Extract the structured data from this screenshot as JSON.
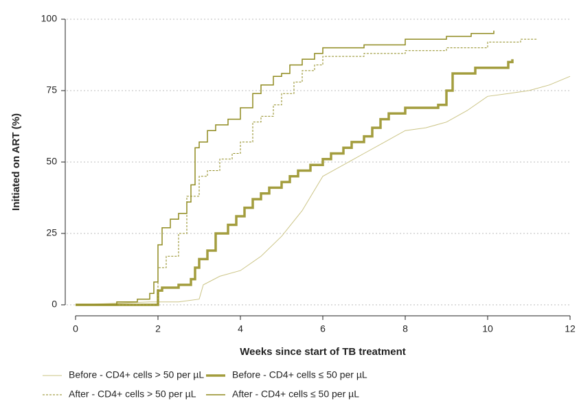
{
  "chart_data": {
    "type": "line",
    "xlabel": "Weeks since start of TB treatment",
    "ylabel": "Initiated on ART (%)",
    "xlim": [
      0,
      12
    ],
    "xticks": [
      0,
      2,
      4,
      6,
      8,
      10,
      12
    ],
    "ylim": [
      0,
      100
    ],
    "yticks": [
      0,
      25,
      50,
      75,
      100
    ],
    "grid": true,
    "legend": "bottom",
    "series": [
      {
        "name": "Before - CD4+ cells > 50 per µL",
        "color": "#cbc485",
        "width": 1,
        "dash": false,
        "step": false,
        "x": [
          0,
          1.8,
          2.5,
          3,
          3.1,
          3.5,
          4,
          4.5,
          5,
          5.5,
          6,
          6.5,
          7,
          7.5,
          8,
          8.5,
          9,
          9.5,
          10,
          10.5,
          11,
          11.5,
          12
        ],
        "values": [
          0,
          1,
          1,
          2,
          7,
          10,
          12,
          17,
          24,
          33,
          45,
          49,
          53,
          57,
          61,
          62,
          64,
          68,
          73,
          74,
          75,
          77,
          80
        ]
      },
      {
        "name": "Before - CD4+ cells ≤ 50 per µL",
        "color": "#a39d3e",
        "width": 3.5,
        "dash": false,
        "step": true,
        "x": [
          0,
          2,
          2.1,
          2.5,
          2.8,
          2.9,
          3,
          3.2,
          3.4,
          3.7,
          3.9,
          4.1,
          4.3,
          4.5,
          4.7,
          5,
          5.2,
          5.4,
          5.7,
          6,
          6.2,
          6.5,
          6.7,
          7,
          7.2,
          7.4,
          7.6,
          8,
          8.8,
          9,
          9.15,
          9.7,
          10.5,
          10.6
        ],
        "values": [
          0,
          5,
          6,
          7,
          9,
          13,
          16,
          19,
          25,
          28,
          31,
          34,
          37,
          39,
          41,
          43,
          45,
          47,
          49,
          51,
          53,
          55,
          57,
          59,
          62,
          65,
          67,
          69,
          70,
          75,
          81,
          83,
          85,
          86
        ]
      },
      {
        "name": "After - CD4+ cells > 50 per µL",
        "color": "#8f8a1e",
        "width": 1,
        "dash": true,
        "step": true,
        "x": [
          0,
          2,
          2.2,
          2.5,
          2.7,
          3,
          3.2,
          3.5,
          3.8,
          4,
          4.3,
          4.5,
          4.8,
          5,
          5.3,
          5.5,
          5.8,
          6,
          7,
          8,
          9,
          10,
          10.8,
          11.2
        ],
        "values": [
          0,
          13,
          17,
          25,
          38,
          45,
          47,
          51,
          53,
          57,
          64,
          66,
          70,
          74,
          78,
          82,
          84,
          87,
          88,
          89,
          90,
          92,
          93,
          93
        ]
      },
      {
        "name": "After - CD4+ cells ≤ 50 per µL",
        "color": "#8f8a1e",
        "width": 1.5,
        "dash": false,
        "step": true,
        "x": [
          0,
          1,
          1.5,
          1.8,
          1.9,
          2,
          2.1,
          2.3,
          2.5,
          2.7,
          2.8,
          2.9,
          3,
          3.2,
          3.4,
          3.7,
          4,
          4.3,
          4.5,
          4.8,
          5,
          5.2,
          5.5,
          5.8,
          6,
          7,
          8,
          9,
          9.6,
          10.15
        ],
        "values": [
          0,
          1,
          2,
          4,
          8,
          21,
          27,
          30,
          32,
          36,
          42,
          55,
          57,
          61,
          63,
          65,
          69,
          74,
          77,
          80,
          81,
          84,
          86,
          88,
          90,
          91,
          93,
          94,
          95,
          96
        ]
      }
    ]
  }
}
